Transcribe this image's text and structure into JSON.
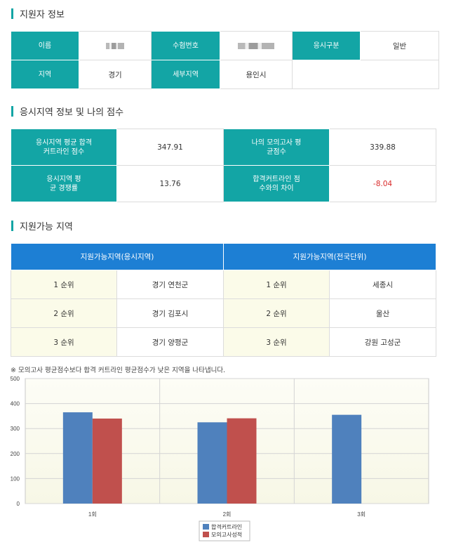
{
  "sections": {
    "applicant_title": "지원자 정보",
    "region_score_title": "응시지역 정보 및 나의 점수",
    "eligible_title": "지원가능 지역"
  },
  "applicant": {
    "name_label": "이름",
    "exam_no_label": "수험번호",
    "type_label": "응시구분",
    "type_value": "일반",
    "region_label": "지역",
    "region_value": "경기",
    "subregion_label": "세부지역",
    "subregion_value": "용인시"
  },
  "score": {
    "cutoff_label": "응시지역 평균 합격 커트라인 점수",
    "cutoff_value": "347.91",
    "my_label": "나의 모의고사 평균점수",
    "my_value": "339.88",
    "competition_label": "응시지역 평균 경쟁률",
    "competition_value": "13.76",
    "diff_label": "합격커트라인 점수와의 차이",
    "diff_value": "-8.04"
  },
  "eligible": {
    "header_left": "지원가능지역(응시지역)",
    "header_right": "지원가능지역(전국단위)",
    "rows": [
      {
        "rank": "1 순위",
        "left": "경기 연천군",
        "rank2": "1 순위",
        "right": "세종시"
      },
      {
        "rank": "2 순위",
        "left": "경기 김포시",
        "rank2": "2 순위",
        "right": "울산"
      },
      {
        "rank": "3 순위",
        "left": "경기 양평군",
        "rank2": "3 순위",
        "right": "강원 고성군"
      }
    ]
  },
  "note": "※ 모의고사 평균점수보다 합격 커트라인 평균점수가 낮은 지역을 나타냅니다.",
  "colors": {
    "teal": "#13a5a5",
    "blue_header": "#1d7fd4",
    "series1": "#4f81bd",
    "series2": "#c0504d",
    "negative": "#d92b2b"
  },
  "chart_data": {
    "type": "bar",
    "categories": [
      "1회",
      "2회",
      "3회"
    ],
    "series": [
      {
        "name": "합격커트라인",
        "values": [
          365,
          325,
          355
        ]
      },
      {
        "name": "모의고사성적",
        "values": [
          340,
          341,
          null
        ]
      }
    ],
    "yticks": [
      "0",
      "100",
      "200",
      "300",
      "400",
      "500"
    ],
    "ylim": [
      0,
      500
    ],
    "grid": true,
    "legend_position": "bottom-center"
  }
}
